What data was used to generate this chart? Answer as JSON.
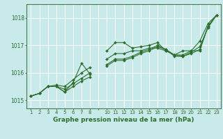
{
  "background_color": "#c8eaea",
  "grid_color": "#ffffff",
  "line_color": "#2d6e2d",
  "marker": "D",
  "markersize": 2.0,
  "linewidth": 0.8,
  "xlabel": "Graphe pression niveau de la mer (hPa)",
  "xlabel_fontsize": 6.5,
  "ylabel_fontsize": 5.5,
  "tick_fontsize": 5.0,
  "xlim": [
    0.5,
    23.5
  ],
  "ylim": [
    1014.7,
    1018.5
  ],
  "yticks": [
    1015,
    1016,
    1017,
    1018
  ],
  "xtick_labels": [
    "1",
    "2",
    "3",
    "4",
    "5",
    "6",
    "7",
    "8",
    "",
    "10",
    "11",
    "12",
    "13",
    "14",
    "15",
    "16",
    "17",
    "18",
    "19",
    "20",
    "21",
    "22",
    "23"
  ],
  "series": [
    [
      1015.15,
      1015.25,
      1015.5,
      1015.5,
      1015.3,
      1015.65,
      1016.35,
      1015.95,
      null,
      1016.8,
      1017.1,
      1017.1,
      1016.9,
      1016.95,
      1017.0,
      1017.1,
      1016.8,
      1016.65,
      1016.8,
      1016.8,
      1017.15,
      1017.8,
      1018.1
    ],
    [
      1015.15,
      1015.25,
      1015.5,
      1015.55,
      1015.5,
      1015.75,
      1016.0,
      1016.2,
      null,
      1016.5,
      1016.7,
      1016.7,
      1016.8,
      1016.8,
      1016.9,
      1016.9,
      1016.8,
      1016.65,
      1016.65,
      1016.8,
      1016.8,
      1017.7,
      1018.1
    ],
    [
      1015.15,
      1015.25,
      1015.5,
      1015.5,
      1015.3,
      1015.5,
      1015.7,
      1015.85,
      null,
      1016.25,
      1016.45,
      1016.45,
      1016.55,
      1016.7,
      1016.8,
      1016.95,
      1016.85,
      1016.65,
      1016.6,
      1016.7,
      1016.85,
      1017.7,
      1018.1
    ],
    [
      1015.15,
      1015.25,
      1015.5,
      1015.5,
      1015.4,
      1015.6,
      1015.8,
      1016.0,
      null,
      1016.3,
      1016.5,
      1016.5,
      1016.6,
      1016.75,
      1016.85,
      1017.0,
      1016.85,
      1016.6,
      1016.6,
      1016.75,
      1016.95,
      1017.65,
      1018.1
    ]
  ]
}
